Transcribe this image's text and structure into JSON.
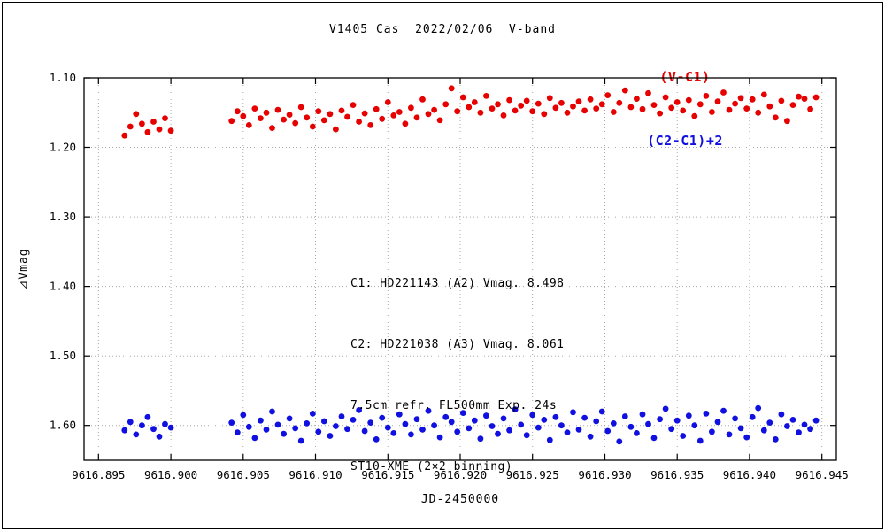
{
  "annotation": {
    "lines": [
      "C1: HD221143 (A2) Vmag. 8.498",
      "C2: HD221038 (A3) Vmag. 8.061",
      "7.5cm refr. FL500mm Exp. 24s",
      "ST10-XME (2×2 binning)"
    ]
  },
  "chart_data": {
    "type": "scatter",
    "title": "V1405 Cas  2022/02/06  V-band",
    "xlabel": "JD-2450000",
    "ylabel": "⊿Vmag",
    "grid": "dotted",
    "legend_position": "top-right",
    "y_axis_inverted": true,
    "xlim": [
      9616.894,
      9616.946
    ],
    "ylim": [
      1.1,
      1.65
    ],
    "x_ticks": [
      9616.895,
      9616.9,
      9616.905,
      9616.91,
      9616.915,
      9616.92,
      9616.925,
      9616.93,
      9616.935,
      9616.94,
      9616.945
    ],
    "x_tick_labels": [
      "9616.895",
      "9616.900",
      "9616.905",
      "9616.910",
      "9616.915",
      "9616.920",
      "9616.925",
      "9616.930",
      "9616.935",
      "9616.940",
      "9616.945"
    ],
    "y_ticks": [
      1.1,
      1.2,
      1.3,
      1.4,
      1.5,
      1.6
    ],
    "y_tick_labels": [
      "1.10",
      "1.20",
      "1.30",
      "1.40",
      "1.50",
      "1.60"
    ],
    "x_base": 9616,
    "x_offsets": [
      0.8968,
      0.8972,
      0.8976,
      0.898,
      0.8984,
      0.8988,
      0.8992,
      0.8996,
      0.9,
      0.9042,
      0.9046,
      0.905,
      0.9054,
      0.9058,
      0.9062,
      0.9066,
      0.907,
      0.9074,
      0.9078,
      0.9082,
      0.9086,
      0.909,
      0.9094,
      0.9098,
      0.9102,
      0.9106,
      0.911,
      0.9114,
      0.9118,
      0.9122,
      0.9126,
      0.913,
      0.9134,
      0.9138,
      0.9142,
      0.9146,
      0.915,
      0.9154,
      0.9158,
      0.9162,
      0.9166,
      0.917,
      0.9174,
      0.9178,
      0.9182,
      0.9186,
      0.919,
      0.9194,
      0.9198,
      0.9202,
      0.9206,
      0.921,
      0.9214,
      0.9218,
      0.9222,
      0.9226,
      0.923,
      0.9234,
      0.9238,
      0.9242,
      0.9246,
      0.925,
      0.9254,
      0.9258,
      0.9262,
      0.9266,
      0.927,
      0.9274,
      0.9278,
      0.9282,
      0.9286,
      0.929,
      0.9294,
      0.9298,
      0.9302,
      0.9306,
      0.931,
      0.9314,
      0.9318,
      0.9322,
      0.9326,
      0.933,
      0.9334,
      0.9338,
      0.9342,
      0.9346,
      0.935,
      0.9354,
      0.9358,
      0.9362,
      0.9366,
      0.937,
      0.9374,
      0.9378,
      0.9382,
      0.9386,
      0.939,
      0.9394,
      0.9398,
      0.9402,
      0.9406,
      0.941,
      0.9414,
      0.9418,
      0.9422,
      0.9426,
      0.943,
      0.9434,
      0.9438,
      0.9442,
      0.9446
    ],
    "series": [
      {
        "name": "(V-C1)",
        "color": "#e60000",
        "values": [
          1.183,
          1.17,
          1.152,
          1.166,
          1.178,
          1.163,
          1.174,
          1.158,
          1.176,
          1.162,
          1.148,
          1.155,
          1.168,
          1.144,
          1.158,
          1.15,
          1.172,
          1.146,
          1.16,
          1.153,
          1.165,
          1.142,
          1.157,
          1.17,
          1.148,
          1.161,
          1.152,
          1.174,
          1.147,
          1.156,
          1.139,
          1.163,
          1.151,
          1.168,
          1.145,
          1.159,
          1.135,
          1.154,
          1.149,
          1.166,
          1.143,
          1.157,
          1.131,
          1.152,
          1.146,
          1.161,
          1.138,
          1.115,
          1.148,
          1.128,
          1.142,
          1.135,
          1.15,
          1.126,
          1.144,
          1.138,
          1.154,
          1.132,
          1.147,
          1.14,
          1.133,
          1.148,
          1.137,
          1.152,
          1.129,
          1.143,
          1.136,
          1.15,
          1.141,
          1.134,
          1.147,
          1.131,
          1.144,
          1.138,
          1.125,
          1.149,
          1.136,
          1.118,
          1.142,
          1.13,
          1.145,
          1.122,
          1.139,
          1.151,
          1.128,
          1.143,
          1.135,
          1.147,
          1.132,
          1.155,
          1.138,
          1.126,
          1.149,
          1.134,
          1.121,
          1.146,
          1.137,
          1.129,
          1.144,
          1.131,
          1.15,
          1.124,
          1.141,
          1.157,
          1.133,
          1.162,
          1.139,
          1.127,
          1.13,
          1.145,
          1.128
        ]
      },
      {
        "name": "(C2-C1)+2",
        "color": "#1010e0",
        "values": [
          1.607,
          1.595,
          1.613,
          1.6,
          1.588,
          1.605,
          1.616,
          1.598,
          1.603,
          1.596,
          1.61,
          1.585,
          1.602,
          1.618,
          1.593,
          1.606,
          1.58,
          1.599,
          1.612,
          1.59,
          1.604,
          1.622,
          1.597,
          1.583,
          1.609,
          1.594,
          1.615,
          1.601,
          1.587,
          1.605,
          1.592,
          1.578,
          1.608,
          1.596,
          1.62,
          1.589,
          1.603,
          1.611,
          1.584,
          1.598,
          1.613,
          1.591,
          1.606,
          1.579,
          1.6,
          1.617,
          1.588,
          1.595,
          1.609,
          1.582,
          1.604,
          1.593,
          1.619,
          1.586,
          1.601,
          1.612,
          1.59,
          1.607,
          1.577,
          1.599,
          1.614,
          1.585,
          1.603,
          1.592,
          1.621,
          1.588,
          1.6,
          1.61,
          1.581,
          1.606,
          1.589,
          1.616,
          1.594,
          1.58,
          1.608,
          1.597,
          1.623,
          1.587,
          1.602,
          1.611,
          1.584,
          1.598,
          1.618,
          1.591,
          1.576,
          1.605,
          1.593,
          1.615,
          1.586,
          1.6,
          1.622,
          1.583,
          1.609,
          1.595,
          1.579,
          1.613,
          1.59,
          1.604,
          1.617,
          1.588,
          1.575,
          1.607,
          1.596,
          1.62,
          1.584,
          1.601,
          1.592,
          1.61,
          1.599,
          1.605,
          1.593
        ]
      }
    ]
  }
}
